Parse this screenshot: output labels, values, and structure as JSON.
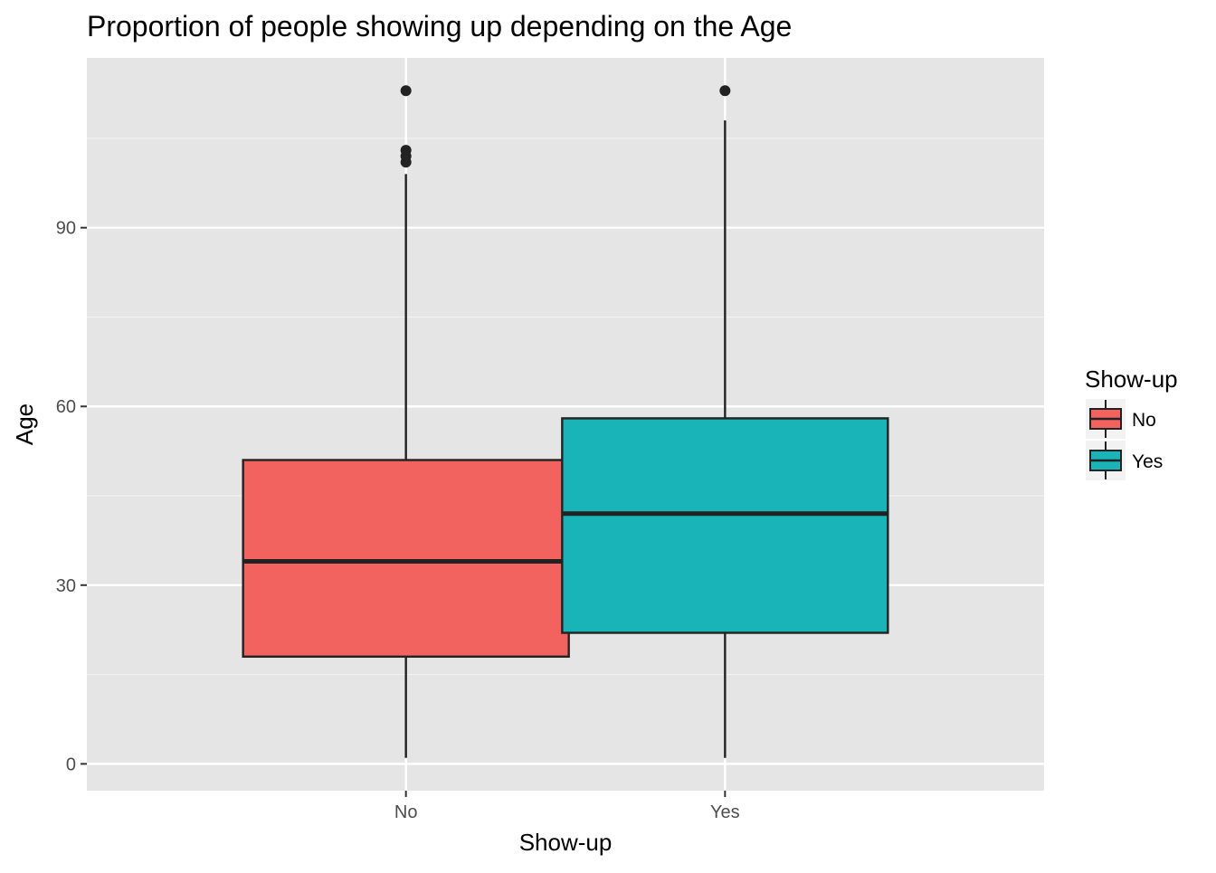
{
  "chart_data": {
    "type": "box",
    "title": "Proportion of people showing up depending on the Age",
    "xlabel": "Show-up",
    "ylabel": "Age",
    "categories": [
      "No",
      "Yes"
    ],
    "ylim": [
      -4.5,
      118.5
    ],
    "yticks": [
      0,
      30,
      60,
      90
    ],
    "grid": true,
    "boxes": [
      {
        "category": "No",
        "color": "#F26360",
        "min": 1,
        "q1": 18,
        "median": 34,
        "q3": 51,
        "max": 99,
        "outliers": [
          101,
          102,
          103,
          113
        ]
      },
      {
        "category": "Yes",
        "color": "#19B4B8",
        "min": 1,
        "q1": 22,
        "median": 42,
        "q3": 58,
        "max": 108,
        "outliers": [
          113
        ]
      }
    ],
    "legend": {
      "title": "Show-up",
      "position": "right",
      "items": [
        {
          "label": "No",
          "color": "#F26360"
        },
        {
          "label": "Yes",
          "color": "#19B4B8"
        }
      ]
    }
  }
}
